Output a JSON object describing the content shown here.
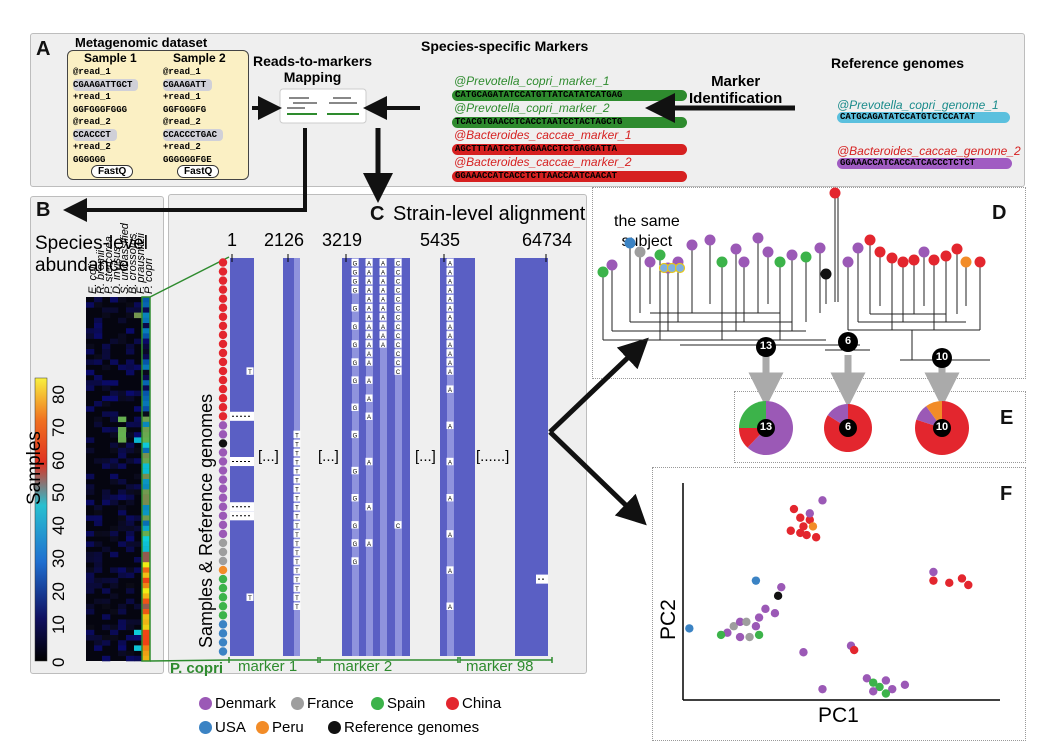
{
  "colors": {
    "denmark": "#9b59b6",
    "france": "#9e9e9e",
    "spain": "#3cb34a",
    "china": "#e3262e",
    "usa": "#3b83c4",
    "peru": "#f28c28",
    "reference": "#111111",
    "alignment": "#5a5fc4",
    "marker_green": "#2e8b2e",
    "marker_red": "#d62020",
    "genome_teal": "#1a8b8b"
  },
  "panel_a": {
    "letter": "A",
    "dataset_title": "Metagenomic dataset",
    "sample1": {
      "title": "Sample 1",
      "lines": [
        "@read_1",
        "CGAAGATTGCT",
        "+read_1",
        "GGFGGGFGGG",
        "@read_2",
        "CCACCCT",
        "+read_2",
        "GGGGGG"
      ],
      "format": "FastQ"
    },
    "sample2": {
      "title": "Sample 2",
      "lines": [
        "@read_1",
        "CGAAGATT",
        "+read_1",
        "GGFGGGFG",
        "@read_2",
        "CCACCCTGAC",
        "+read_2",
        "GGGGGGFGE"
      ],
      "format": "FastQ"
    },
    "mapping_title": "Reads-to-markers\nMapping",
    "markers_title": "Species-specific Markers",
    "markers": [
      {
        "name": "@Prevotella_copri_marker_1",
        "seq": "CATGCAGATATCCATGTTATCATATCATGAG",
        "color": "green"
      },
      {
        "name": "@Prevotella_copri_marker_2",
        "seq": "TCACGTGAACCTCACCTAATCCTACTAGCTG",
        "color": "green"
      },
      {
        "name": "@Bacteroides_caccae_marker_1",
        "seq": "AGCTTTAATCCTAGGAACCTCTGAGGATTA",
        "color": "red"
      },
      {
        "name": "@Bacteroides_caccae_marker_2",
        "seq": "GGAAACCATCACCTCTTAACCAATCAACAT",
        "color": "red"
      }
    ],
    "identification_title": "Marker\nIdentification",
    "genomes_title": "Reference genomes",
    "genomes": [
      {
        "name": "@Prevotella_copri_genome_1",
        "seq": "CATGCAGATATCCATGTCTCCATAT"
      },
      {
        "name": "@Bacteroides_caccae_genome_2",
        "seq": "GGAAACCATCACCATCACCCTCTCT"
      }
    ]
  },
  "panel_b": {
    "letter": "B",
    "title": "Species-level\nabundance",
    "species": [
      "E. coli",
      "R. bromii",
      "P. stercorea",
      "D. invisus",
      "S. unclassified",
      "B. crossotus",
      "F. prausnitzii",
      "P. copri"
    ],
    "ylabel": "Samples",
    "colorbar_ticks": [
      "0",
      "10",
      "20",
      "30",
      "40",
      "50",
      "60",
      "70",
      "80"
    ]
  },
  "panel_c": {
    "letter": "C",
    "title": "Strain-level alignment",
    "positions": [
      "1",
      "2126",
      "3219",
      "5435",
      "64734"
    ],
    "ylabel": "Samples & Reference genomes",
    "row_label": "P. copri",
    "gaps": [
      "[...]",
      "[...]",
      "[...]",
      "[......]"
    ],
    "markers": [
      "marker 1",
      "marker 2",
      "marker 98"
    ]
  },
  "panel_d": {
    "letter": "D",
    "annotation": "the same\nsubject",
    "clade_counts": [
      "13",
      "6",
      "10"
    ]
  },
  "panel_e": {
    "letter": "E",
    "pies": [
      {
        "label": "13",
        "slices": [
          {
            "country": "Denmark",
            "value": 0.62
          },
          {
            "country": "China",
            "value": 0.13
          },
          {
            "country": "Spain",
            "value": 0.25
          }
        ]
      },
      {
        "label": "6",
        "slices": [
          {
            "country": "China",
            "value": 0.84
          },
          {
            "country": "Denmark",
            "value": 0.16
          }
        ]
      },
      {
        "label": "10",
        "slices": [
          {
            "country": "China",
            "value": 0.8
          },
          {
            "country": "Denmark",
            "value": 0.1
          },
          {
            "country": "Peru",
            "value": 0.1
          }
        ]
      }
    ]
  },
  "panel_f": {
    "letter": "F",
    "xlabel": "PC1",
    "ylabel": "PC2"
  },
  "legend": [
    {
      "label": "Denmark",
      "color": "#9b59b6"
    },
    {
      "label": "France",
      "color": "#9e9e9e"
    },
    {
      "label": "Spain",
      "color": "#3cb34a"
    },
    {
      "label": "China",
      "color": "#e3262e"
    },
    {
      "label": "USA",
      "color": "#3b83c4"
    },
    {
      "label": "Peru",
      "color": "#f28c28"
    },
    {
      "label": "Reference genomes",
      "color": "#111111"
    }
  ],
  "chart_data": {
    "type": "scatter",
    "xlabel": "PC1",
    "ylabel": "PC2",
    "points": [
      {
        "x": 0.35,
        "y": 0.88,
        "c": "china"
      },
      {
        "x": 0.37,
        "y": 0.84,
        "c": "china"
      },
      {
        "x": 0.4,
        "y": 0.83,
        "c": "china"
      },
      {
        "x": 0.38,
        "y": 0.8,
        "c": "china"
      },
      {
        "x": 0.41,
        "y": 0.8,
        "c": "peru"
      },
      {
        "x": 0.34,
        "y": 0.78,
        "c": "china"
      },
      {
        "x": 0.37,
        "y": 0.77,
        "c": "china"
      },
      {
        "x": 0.39,
        "y": 0.76,
        "c": "china"
      },
      {
        "x": 0.42,
        "y": 0.75,
        "c": "china"
      },
      {
        "x": 0.44,
        "y": 0.92,
        "c": "denmark"
      },
      {
        "x": 0.4,
        "y": 0.86,
        "c": "denmark"
      },
      {
        "x": 0.79,
        "y": 0.59,
        "c": "denmark"
      },
      {
        "x": 0.79,
        "y": 0.55,
        "c": "china"
      },
      {
        "x": 0.84,
        "y": 0.54,
        "c": "china"
      },
      {
        "x": 0.88,
        "y": 0.56,
        "c": "china"
      },
      {
        "x": 0.9,
        "y": 0.53,
        "c": "china"
      },
      {
        "x": 0.02,
        "y": 0.33,
        "c": "usa"
      },
      {
        "x": 0.23,
        "y": 0.55,
        "c": "usa"
      },
      {
        "x": 0.31,
        "y": 0.52,
        "c": "denmark"
      },
      {
        "x": 0.3,
        "y": 0.48,
        "c": "reference"
      },
      {
        "x": 0.14,
        "y": 0.31,
        "c": "denmark"
      },
      {
        "x": 0.16,
        "y": 0.34,
        "c": "france"
      },
      {
        "x": 0.18,
        "y": 0.36,
        "c": "denmark"
      },
      {
        "x": 0.2,
        "y": 0.36,
        "c": "france"
      },
      {
        "x": 0.23,
        "y": 0.34,
        "c": "denmark"
      },
      {
        "x": 0.24,
        "y": 0.3,
        "c": "spain"
      },
      {
        "x": 0.18,
        "y": 0.29,
        "c": "denmark"
      },
      {
        "x": 0.12,
        "y": 0.3,
        "c": "spain"
      },
      {
        "x": 0.24,
        "y": 0.38,
        "c": "denmark"
      },
      {
        "x": 0.21,
        "y": 0.29,
        "c": "france"
      },
      {
        "x": 0.26,
        "y": 0.42,
        "c": "denmark"
      },
      {
        "x": 0.29,
        "y": 0.4,
        "c": "denmark"
      },
      {
        "x": 0.38,
        "y": 0.22,
        "c": "denmark"
      },
      {
        "x": 0.53,
        "y": 0.25,
        "c": "denmark"
      },
      {
        "x": 0.54,
        "y": 0.23,
        "c": "china"
      },
      {
        "x": 0.44,
        "y": 0.05,
        "c": "denmark"
      },
      {
        "x": 0.58,
        "y": 0.1,
        "c": "denmark"
      },
      {
        "x": 0.6,
        "y": 0.08,
        "c": "spain"
      },
      {
        "x": 0.62,
        "y": 0.06,
        "c": "spain"
      },
      {
        "x": 0.6,
        "y": 0.04,
        "c": "denmark"
      },
      {
        "x": 0.64,
        "y": 0.09,
        "c": "denmark"
      },
      {
        "x": 0.66,
        "y": 0.05,
        "c": "denmark"
      },
      {
        "x": 0.64,
        "y": 0.03,
        "c": "spain"
      },
      {
        "x": 0.7,
        "y": 0.07,
        "c": "denmark"
      }
    ]
  }
}
